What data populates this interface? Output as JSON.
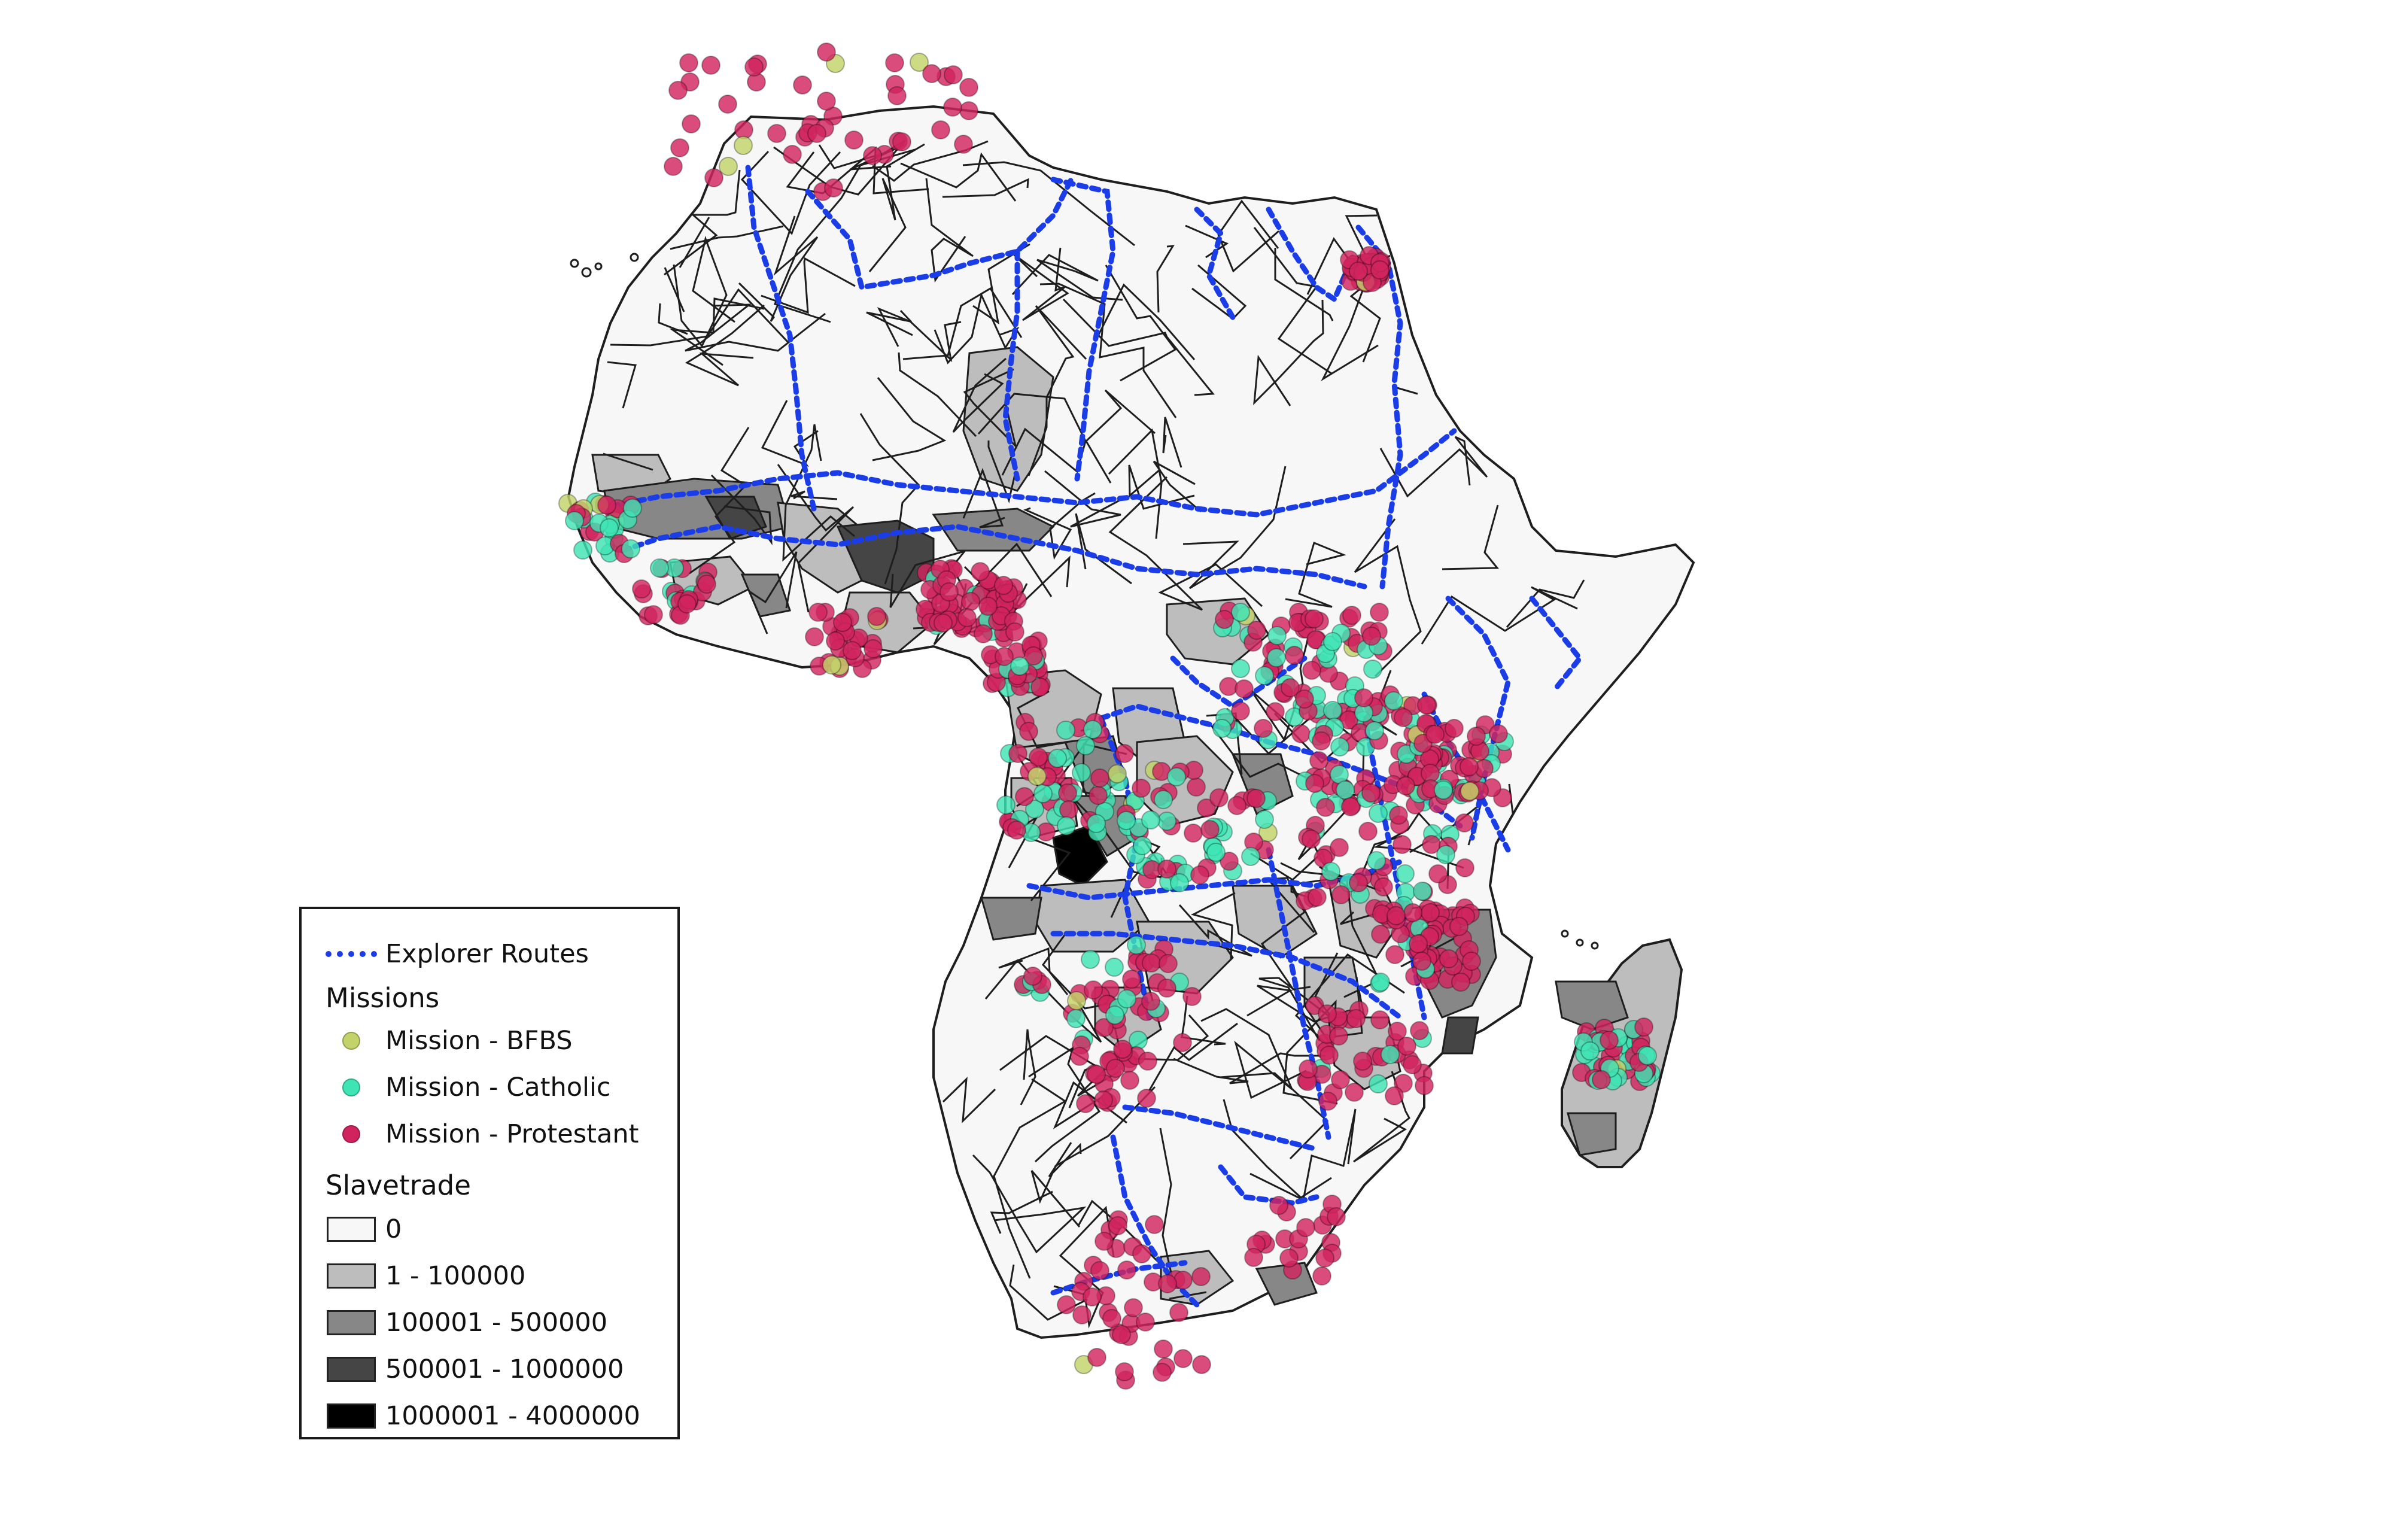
{
  "legend": {
    "routes_label": "Explorer Routes",
    "missions_header": "Missions",
    "missions": [
      {
        "label": "Mission - BFBS",
        "color": "#c3d36a"
      },
      {
        "label": "Mission - Catholic",
        "color": "#3fe4b4"
      },
      {
        "label": "Mission - Protestant",
        "color": "#d1245e"
      }
    ],
    "slavetrade_header": "Slavetrade",
    "slavetrade_classes": [
      {
        "label": "0",
        "color": "#f7f7f7"
      },
      {
        "label": "1 - 100000",
        "color": "#bdbdbd"
      },
      {
        "label": "100001 - 500000",
        "color": "#878787"
      },
      {
        "label": "500001 - 1000000",
        "color": "#454545"
      },
      {
        "label": "1000001 - 4000000",
        "color": "#000000"
      }
    ]
  },
  "colors": {
    "route": "#1a3de8",
    "boundary": "#1e1e1e",
    "land": "#f7f7f7"
  }
}
